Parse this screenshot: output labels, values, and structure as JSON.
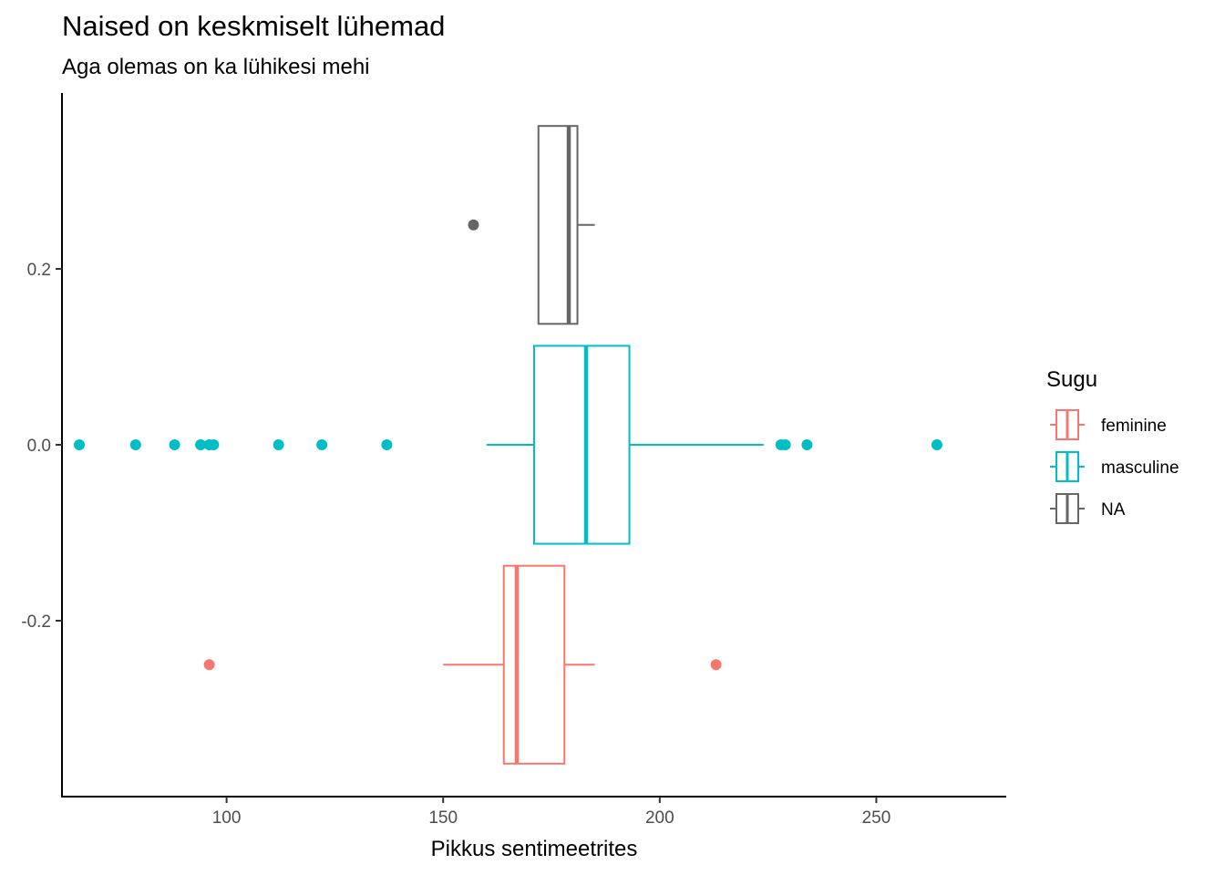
{
  "chart_data": {
    "type": "boxplot",
    "orientation": "horizontal",
    "title": "Naised on keskmiselt lühemad",
    "subtitle": "Aga olemas on ka lühikesi mehi",
    "xlabel": "Pikkus sentimeetrites",
    "ylabel": "",
    "xlim": [
      62,
      280
    ],
    "ylim": [
      -0.4,
      0.4
    ],
    "x_ticks": [
      100,
      150,
      200,
      250
    ],
    "y_ticks": [
      0.2,
      0.0,
      -0.2
    ],
    "y_tick_labels": [
      "0.2",
      "0.0",
      "-0.2"
    ],
    "grid": false,
    "legend": {
      "title": "Sugu",
      "position": "right",
      "entries": [
        "feminine",
        "masculine",
        "NA"
      ]
    },
    "series": [
      {
        "name": "feminine",
        "color": "#F8766D",
        "y_center": -0.25,
        "y_half_height": 0.1125,
        "whisker_low": 150,
        "q1": 164,
        "median": 167,
        "q3": 178,
        "whisker_high": 185,
        "outliers": [
          96,
          213
        ]
      },
      {
        "name": "masculine",
        "color": "#00BFC4",
        "y_center": 0.0,
        "y_half_height": 0.1125,
        "whisker_low": 160,
        "q1": 171,
        "median": 183,
        "q3": 193,
        "whisker_high": 224,
        "outliers": [
          66,
          79,
          88,
          94,
          96,
          97,
          112,
          122,
          137,
          228,
          229,
          234,
          264
        ]
      },
      {
        "name": "NA",
        "color": "#666666",
        "y_center": 0.25,
        "y_half_height": 0.1125,
        "whisker_low": 172,
        "q1": 172,
        "median": 179,
        "q3": 181,
        "whisker_high": 185,
        "outliers": [
          157
        ]
      }
    ]
  }
}
